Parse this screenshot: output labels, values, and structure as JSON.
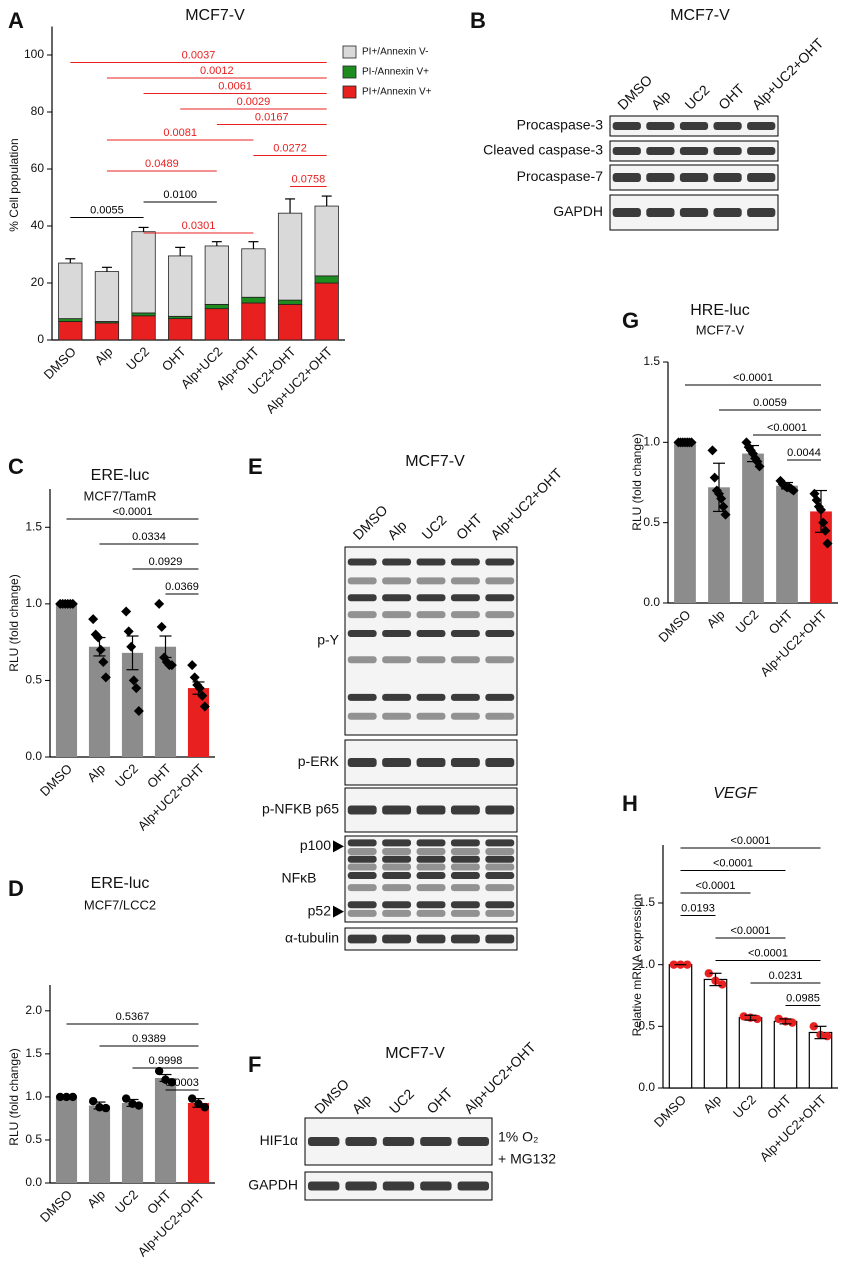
{
  "chart_data": [
    {
      "type": "stacked_bar",
      "panel": "A",
      "title": "MCF7-V",
      "y_label": "% Cell population",
      "categories": [
        "DMSO",
        "Alp",
        "UC2",
        "OHT",
        "Alp+UC2",
        "Alp+OHT",
        "UC2+OHT",
        "Alp+UC2+OHT"
      ],
      "series": [
        {
          "name": "PI+/Annexin V-",
          "color": "#d9d9d9",
          "values": [
            19.5,
            17.5,
            28.5,
            21.2,
            20.5,
            17,
            30.5,
            24.5
          ],
          "errors": [
            1.5,
            1.5,
            1.5,
            3,
            1.5,
            2.5,
            5,
            3.5
          ]
        },
        {
          "name": "PI-/Annexin V+",
          "color": "#1e8c1e",
          "values": [
            1,
            0.5,
            1,
            0.8,
            1.5,
            2,
            1.5,
            2.5
          ],
          "errors": [
            0.5,
            0.4,
            0.5,
            0.5,
            0.6,
            0.8,
            0.7,
            1
          ]
        },
        {
          "name": "PI+/Annexin V+",
          "color": "#e8201f",
          "values": [
            6.5,
            6,
            8.5,
            7.5,
            11,
            13,
            12.5,
            20
          ],
          "errors": [
            0.6,
            0.5,
            0.7,
            0.6,
            0.8,
            1,
            0.9,
            1.2
          ]
        }
      ],
      "ylim": [
        0,
        110
      ],
      "yticks": [
        0,
        20,
        40,
        60,
        80,
        100
      ],
      "comparisons": [
        {
          "from": 0,
          "to": 7,
          "label": "0.0037",
          "color": "#e8201f"
        },
        {
          "from": 1,
          "to": 7,
          "label": "0.0012",
          "color": "#e8201f"
        },
        {
          "from": 2,
          "to": 7,
          "label": "0.0061",
          "color": "#e8201f"
        },
        {
          "from": 3,
          "to": 7,
          "label": "0.0029",
          "color": "#e8201f"
        },
        {
          "from": 4,
          "to": 7,
          "label": "0.0167",
          "color": "#e8201f"
        },
        {
          "from": 1,
          "to": 5,
          "label": "0.0081",
          "color": "#e8201f"
        },
        {
          "from": 5,
          "to": 7,
          "label": "0.0272",
          "color": "#e8201f"
        },
        {
          "from": 1,
          "to": 4,
          "label": "0.0489",
          "color": "#e8201f"
        },
        {
          "from": 6,
          "to": 7,
          "label": "0.0758",
          "color": "#e8201f"
        },
        {
          "from": 2,
          "to": 4,
          "label": "0.0100",
          "color": "#000000"
        },
        {
          "from": 0,
          "to": 2,
          "label": "0.0055",
          "color": "#000000"
        },
        {
          "from": 2,
          "to": 5,
          "label": "0.0301",
          "color": "#e8201f"
        }
      ]
    },
    {
      "type": "blot",
      "panel": "B",
      "title": "MCF7-V",
      "lanes": [
        "DMSO",
        "Alp",
        "UC2",
        "OHT",
        "Alp+UC2+OHT"
      ],
      "rows": [
        {
          "label": "Procaspase-3"
        },
        {
          "label": "Cleaved caspase-3"
        },
        {
          "label": "Procaspase-7"
        },
        {
          "label": "GAPDH"
        }
      ]
    },
    {
      "type": "bar",
      "panel": "C",
      "title": "ERE-luc",
      "subtitle": "MCF7/TamR",
      "y_label": "RLU (fold change)",
      "categories": [
        "DMSO",
        "Alp",
        "UC2",
        "OHT",
        "Alp+UC2+OHT"
      ],
      "values": [
        1.0,
        0.72,
        0.68,
        0.72,
        0.45
      ],
      "errors": [
        0,
        0.06,
        0.11,
        0.07,
        0.04
      ],
      "colors": [
        "#8c8c8c",
        "#8c8c8c",
        "#8c8c8c",
        "#8c8c8c",
        "#e8201f"
      ],
      "points": [
        [
          1,
          1,
          1,
          1,
          1,
          1
        ],
        [
          0.9,
          0.8,
          0.78,
          0.7,
          0.62,
          0.52
        ],
        [
          0.95,
          0.82,
          0.72,
          0.5,
          0.45,
          0.3
        ],
        [
          1.0,
          0.85,
          0.65,
          0.62,
          0.6,
          0.6
        ],
        [
          0.6,
          0.52,
          0.47,
          0.45,
          0.4,
          0.33
        ]
      ],
      "point_marker": "diamond",
      "point_color": "#000000",
      "ylim": [
        0,
        1.75
      ],
      "yticks": [
        {
          "value": 0,
          "label": "0.0"
        },
        0.5,
        {
          "value": 1,
          "label": "1.0"
        },
        1.5
      ],
      "comparisons": [
        {
          "from": 0,
          "to": 4,
          "label": "<0.0001"
        },
        {
          "from": 1,
          "to": 4,
          "label": "0.0334"
        },
        {
          "from": 2,
          "to": 4,
          "label": "0.0929"
        },
        {
          "from": 3,
          "to": 4,
          "label": "0.0369"
        }
      ]
    },
    {
      "type": "bar",
      "panel": "D",
      "title": "ERE-luc",
      "subtitle": "MCF7/LCC2",
      "y_label": "RLU (fold change)",
      "categories": [
        "DMSO",
        "Alp",
        "UC2",
        "OHT",
        "Alp+UC2+OHT"
      ],
      "values": [
        1.0,
        0.9,
        0.93,
        1.22,
        0.93
      ],
      "errors": [
        0,
        0.04,
        0.04,
        0.04,
        0.05
      ],
      "colors": [
        "#8c8c8c",
        "#8c8c8c",
        "#8c8c8c",
        "#8c8c8c",
        "#e8201f"
      ],
      "points": [
        [
          1,
          1,
          1
        ],
        [
          0.95,
          0.88,
          0.87
        ],
        [
          0.98,
          0.92,
          0.9
        ],
        [
          1.3,
          1.2,
          1.17
        ],
        [
          0.98,
          0.92,
          0.88
        ]
      ],
      "point_marker": "circle",
      "point_color": "#000000",
      "ylim": [
        0,
        2.3
      ],
      "yticks": [
        {
          "value": 0,
          "label": "0.0"
        },
        0.5,
        {
          "value": 1,
          "label": "1.0"
        },
        1.5,
        {
          "value": 2,
          "label": "2.0"
        }
      ],
      "comparisons": [
        {
          "from": 0,
          "to": 4,
          "label": "0.5367"
        },
        {
          "from": 1,
          "to": 4,
          "label": "0.9389"
        },
        {
          "from": 2,
          "to": 4,
          "label": "0.9998"
        },
        {
          "from": 3,
          "to": 4,
          "label": "0.0003"
        }
      ]
    },
    {
      "type": "blot",
      "panel": "E",
      "title": "MCF7-V",
      "lanes": [
        "DMSO",
        "Alp",
        "UC2",
        "OHT",
        "Alp+UC2+OHT"
      ],
      "rows": [
        {
          "label": "p-Y"
        },
        {
          "label": "p-ERK"
        },
        {
          "label": "p-NFKB p65"
        },
        {
          "label": "NFκB",
          "markers": [
            "p100",
            "p52"
          ]
        },
        {
          "label": "α-tubulin"
        }
      ]
    },
    {
      "type": "blot",
      "panel": "F",
      "title": "MCF7-V",
      "lanes": [
        "DMSO",
        "Alp",
        "UC2",
        "OHT",
        "Alp+UC2+OHT"
      ],
      "rows": [
        {
          "label": "HIF1α"
        },
        {
          "label": "GAPDH"
        }
      ],
      "note": [
        "1% O₂",
        "+ MG132"
      ]
    },
    {
      "type": "bar",
      "panel": "G",
      "title": "HRE-luc",
      "subtitle": "MCF7-V",
      "y_label": "RLU (fold change)",
      "categories": [
        "DMSO",
        "Alp",
        "UC2",
        "OHT",
        "Alp+UC2+OHT"
      ],
      "values": [
        1.0,
        0.72,
        0.93,
        0.73,
        0.57
      ],
      "errors": [
        0,
        0.15,
        0.05,
        0.02,
        0.13
      ],
      "colors": [
        "#8c8c8c",
        "#8c8c8c",
        "#8c8c8c",
        "#8c8c8c",
        "#e8201f"
      ],
      "points": [
        [
          1,
          1,
          1,
          1,
          1,
          1,
          1
        ],
        [
          0.95,
          0.78,
          0.7,
          0.68,
          0.65,
          0.6,
          0.55
        ],
        [
          1.0,
          0.97,
          0.95,
          0.93,
          0.9,
          0.88,
          0.85
        ],
        [
          0.76,
          0.74,
          0.73,
          0.72,
          0.72,
          0.71,
          0.7
        ],
        [
          0.68,
          0.64,
          0.6,
          0.58,
          0.5,
          0.45,
          0.37
        ]
      ],
      "point_marker": "diamond",
      "point_color": "#000000",
      "ylim": [
        0,
        1.5
      ],
      "yticks": [
        {
          "value": 0,
          "label": "0.0"
        },
        0.5,
        {
          "value": 1,
          "label": "1.0"
        },
        1.5
      ],
      "comparisons": [
        {
          "from": 0,
          "to": 4,
          "label": "<0.0001"
        },
        {
          "from": 1,
          "to": 4,
          "label": "0.0059"
        },
        {
          "from": 2,
          "to": 4,
          "label": "<0.0001"
        },
        {
          "from": 3,
          "to": 4,
          "label": "0.0044"
        }
      ]
    },
    {
      "type": "bar",
      "panel": "H",
      "title": "VEGF",
      "title_italic": true,
      "y_label": "Relative mRNA expression",
      "categories": [
        "DMSO",
        "Alp",
        "UC2",
        "OHT",
        "Alp+UC2+OHT"
      ],
      "values": [
        1.0,
        0.88,
        0.57,
        0.54,
        0.45
      ],
      "errors": [
        0,
        0.05,
        0.02,
        0.02,
        0.05
      ],
      "colors": [
        "#ffffff",
        "#ffffff",
        "#ffffff",
        "#ffffff",
        "#ffffff"
      ],
      "bar_stroke": "#000000",
      "points": [
        [
          1,
          1,
          1
        ],
        [
          0.93,
          0.87,
          0.84
        ],
        [
          0.58,
          0.57,
          0.56
        ],
        [
          0.56,
          0.54,
          0.53
        ],
        [
          0.5,
          0.43,
          0.42
        ]
      ],
      "point_marker": "circle",
      "point_color": "#e8201f",
      "ylim": [
        0,
        1.97
      ],
      "yticks": [
        {
          "value": 0,
          "label": "0.0"
        },
        0.5,
        {
          "value": 1,
          "label": "1.0"
        },
        1.5
      ],
      "comparisons": [
        {
          "from": 0,
          "to": 4,
          "label": "<0.0001"
        },
        {
          "from": 0,
          "to": 3,
          "label": "<0.0001"
        },
        {
          "from": 0,
          "to": 2,
          "label": "<0.0001"
        },
        {
          "from": 0,
          "to": 1,
          "label": "0.0193"
        },
        {
          "from": 1,
          "to": 3,
          "label": "<0.0001"
        },
        {
          "from": 1,
          "to": 4,
          "label": "<0.0001"
        },
        {
          "from": 2,
          "to": 4,
          "label": "0.0231"
        },
        {
          "from": 3,
          "to": 4,
          "label": "0.0985"
        }
      ]
    }
  ]
}
